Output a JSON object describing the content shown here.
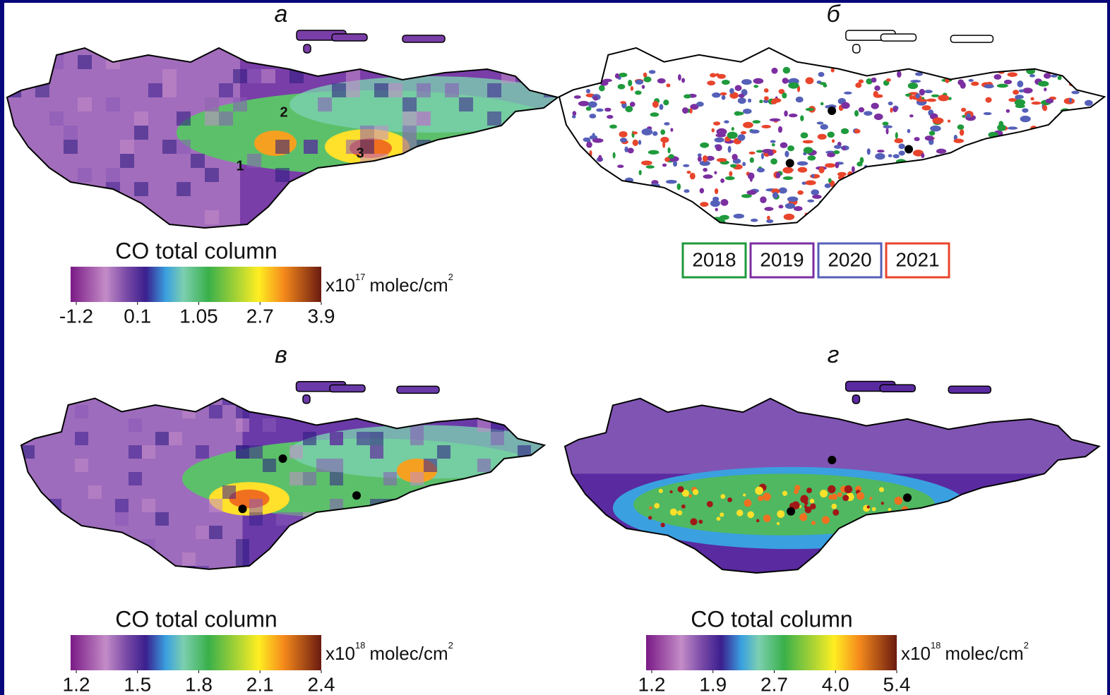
{
  "panels": [
    {
      "letter": "а",
      "labels": [
        "1",
        "2",
        "3"
      ],
      "colorbar": {
        "title": "CO total column",
        "ticks": [
          -1.2,
          0.1,
          1.05,
          2.7,
          3.9
        ],
        "multiplier": "x10",
        "exponent": "17",
        "unit": "molec/cm",
        "unit_exponent": "2"
      }
    },
    {
      "letter": "б",
      "legend": [
        {
          "label": "2018",
          "color": "#1f9a3c"
        },
        {
          "label": "2019",
          "color": "#7b2fa0"
        },
        {
          "label": "2020",
          "color": "#5560b8"
        },
        {
          "label": "2021",
          "color": "#e8452c"
        }
      ]
    },
    {
      "letter": "в",
      "colorbar": {
        "title": "CO total column",
        "ticks": [
          1.2,
          1.5,
          1.8,
          2.1,
          2.4
        ],
        "multiplier": "x10",
        "exponent": "18",
        "unit": "molec/cm",
        "unit_exponent": "2"
      }
    },
    {
      "letter": "г",
      "colorbar": {
        "title": "CO total column",
        "ticks": [
          1.2,
          1.9,
          2.7,
          {
            "value": 4,
            "label": "4.0"
          },
          5.4
        ],
        "multiplier": "x10",
        "exponent": "18",
        "unit": "molec/cm",
        "unit_exponent": "2"
      }
    }
  ]
}
